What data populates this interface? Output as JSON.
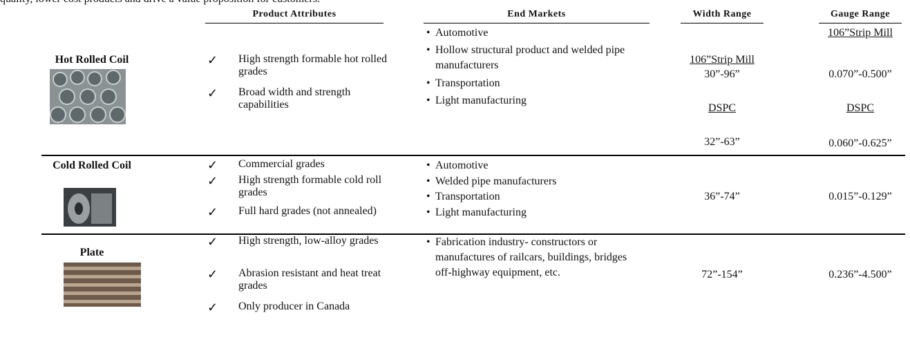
{
  "intro": "quality, lower cost products and drive a value proposition for customers.",
  "header": {
    "attributes": "Product Attributes",
    "markets": "End Markets",
    "width": "Width Range",
    "gauge": "Gauge Range"
  },
  "rows": [
    {
      "name": "Hot Rolled Coil",
      "attributes": [
        "High strength formable hot rolled grades",
        "Broad width and strength capabilities"
      ],
      "markets": [
        "Automotive",
        "Hollow structural product and welded pipe manufacturers",
        "Transportation",
        "Light manufacturing"
      ],
      "width": [
        "106”Strip Mill",
        "30”-96”",
        "DSPC",
        "32”-63”"
      ],
      "gauge": [
        "106”Strip Mill",
        "0.070”-0.500”",
        "DSPC",
        "0.060”-0.625”"
      ]
    },
    {
      "name": "Cold Rolled Coil",
      "attributes": [
        "Commercial grades",
        "High strength formable cold roll grades",
        "Full hard grades (not annealed)"
      ],
      "markets": [
        "Automotive",
        "Welded pipe manufacturers",
        "Transportation",
        "Light manufacturing"
      ],
      "width": [
        "36”-74”"
      ],
      "gauge": [
        "0.015”-0.129”"
      ]
    },
    {
      "name": "Plate",
      "attributes": [
        "High strength, low-alloy grades",
        "Abrasion resistant and heat treat grades",
        "Only producer in Canada"
      ],
      "markets": [
        "Fabrication industry- constructors or manufactures of railcars, buildings, bridges off-highway equipment, etc."
      ],
      "width": [
        "72”-154”"
      ],
      "gauge": [
        "0.236”-4.500”"
      ]
    }
  ]
}
